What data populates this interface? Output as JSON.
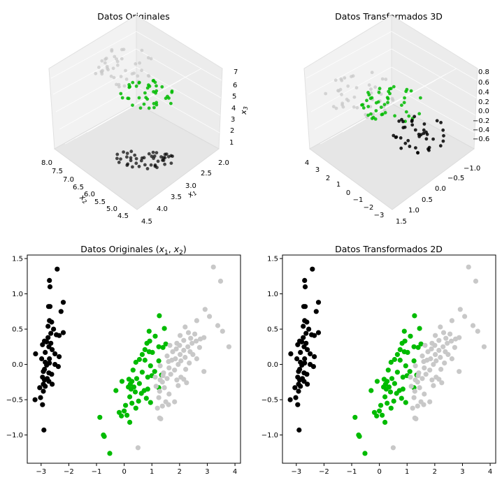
{
  "figure": {
    "colors": {
      "black": "#000000",
      "green": "#00bb00",
      "gray": "#c8c8c8"
    }
  },
  "panels": {
    "p3d_orig": {
      "title": "Datos Originales",
      "z_label": "x3",
      "x2_label": "x2",
      "x1_label": "x1",
      "x2_ticks": [
        "8.0",
        "7.5",
        "7.0",
        "6.5",
        "6.0",
        "5.5",
        "5.0",
        "4.5"
      ],
      "x1_ticks": [
        "2.0",
        "2.5",
        "3.0",
        "3.5",
        "4.0",
        "4.5"
      ],
      "z_ticks": [
        "7",
        "6",
        "5",
        "4",
        "3",
        "2",
        "1"
      ]
    },
    "p3d_trans": {
      "title": "Datos Transformados 3D",
      "a_ticks": [
        "4",
        "3",
        "2",
        "1",
        "0",
        "−1",
        "−2",
        "−3"
      ],
      "b_ticks": [
        "−1.0",
        "−0.5",
        "0.0",
        "0.5",
        "1.0",
        "1.5"
      ],
      "z_ticks": [
        "0.8",
        "0.6",
        "0.4",
        "0.2",
        "0.0",
        "−0.2",
        "−0.4",
        "−0.6"
      ]
    },
    "p2d_orig": {
      "title": "Datos Originales (x1, x2)",
      "title_plain": "Datos Originales ",
      "title_math": "(x1, x2)"
    },
    "p2d_trans": {
      "title": "Datos Transformados 2D"
    }
  },
  "chart_data": [
    {
      "type": "scatter",
      "title": "Datos Originales (x1, x2)",
      "xlim": [
        -3.5,
        4.2
      ],
      "ylim": [
        -1.4,
        1.55
      ],
      "xticks": [
        -3,
        -2,
        -1,
        0,
        1,
        2,
        3,
        4
      ],
      "yticks": [
        -1.0,
        -0.5,
        0.0,
        0.5,
        1.0,
        1.5
      ],
      "xtick_labels": [
        "−3",
        "−2",
        "−1",
        "0",
        "1",
        "2",
        "3",
        "4"
      ],
      "ytick_labels": [
        "−1.0",
        "−0.5",
        "0.0",
        "0.5",
        "1.0",
        "1.5"
      ],
      "series": [
        {
          "color": "#000000",
          "points": [
            [
              -2.42,
              1.35
            ],
            [
              -2.7,
              1.19
            ],
            [
              -2.68,
              1.1
            ],
            [
              -2.2,
              0.88
            ],
            [
              -2.73,
              0.82
            ],
            [
              -2.68,
              0.82
            ],
            [
              -2.28,
              0.75
            ],
            [
              -2.7,
              0.62
            ],
            [
              -2.62,
              0.6
            ],
            [
              -2.75,
              0.54
            ],
            [
              -2.55,
              0.5
            ],
            [
              -2.2,
              0.45
            ],
            [
              -2.65,
              0.44
            ],
            [
              -2.45,
              0.42
            ],
            [
              -2.35,
              0.41
            ],
            [
              -2.75,
              0.38
            ],
            [
              -2.88,
              0.33
            ],
            [
              -2.8,
              0.32
            ],
            [
              -2.65,
              0.3
            ],
            [
              -2.95,
              0.28
            ],
            [
              -2.72,
              0.25
            ],
            [
              -2.6,
              0.21
            ],
            [
              -2.85,
              0.17
            ],
            [
              -3.2,
              0.15
            ],
            [
              -2.5,
              0.15
            ],
            [
              -2.35,
              0.11
            ],
            [
              -2.7,
              0.08
            ],
            [
              -2.98,
              0.08
            ],
            [
              -2.85,
              0.03
            ],
            [
              -2.7,
              0.02
            ],
            [
              -2.8,
              -0.01
            ],
            [
              -2.5,
              0.0
            ],
            [
              -2.38,
              -0.03
            ],
            [
              -2.88,
              -0.07
            ],
            [
              -2.92,
              -0.1
            ],
            [
              -2.72,
              -0.12
            ],
            [
              -2.62,
              -0.14
            ],
            [
              -2.95,
              -0.18
            ],
            [
              -2.78,
              -0.2
            ],
            [
              -2.88,
              -0.22
            ],
            [
              -2.72,
              -0.24
            ],
            [
              -2.92,
              -0.28
            ],
            [
              -2.6,
              -0.28
            ],
            [
              -2.85,
              -0.31
            ],
            [
              -3.05,
              -0.33
            ],
            [
              -2.92,
              -0.38
            ],
            [
              -3.02,
              -0.47
            ],
            [
              -3.22,
              -0.5
            ],
            [
              -2.95,
              -0.57
            ],
            [
              -2.9,
              -0.93
            ]
          ]
        },
        {
          "color": "#00bb00",
          "points": [
            [
              1.27,
              0.69
            ],
            [
              1.45,
              0.51
            ],
            [
              0.9,
              0.47
            ],
            [
              1.12,
              0.4
            ],
            [
              0.92,
              0.33
            ],
            [
              1.5,
              0.29
            ],
            [
              0.82,
              0.3
            ],
            [
              1.25,
              0.25
            ],
            [
              0.75,
              0.21
            ],
            [
              1.4,
              0.24
            ],
            [
              0.9,
              0.18
            ],
            [
              1.02,
              0.17
            ],
            [
              0.65,
              0.14
            ],
            [
              0.55,
              0.07
            ],
            [
              0.75,
              0.06
            ],
            [
              1.25,
              0.05
            ],
            [
              0.42,
              0.03
            ],
            [
              0.95,
              -0.02
            ],
            [
              0.32,
              -0.08
            ],
            [
              1.1,
              -0.1
            ],
            [
              0.65,
              -0.11
            ],
            [
              1.35,
              -0.15
            ],
            [
              1.0,
              -0.16
            ],
            [
              0.85,
              -0.18
            ],
            [
              0.45,
              -0.2
            ],
            [
              0.17,
              -0.21
            ],
            [
              0.28,
              -0.24
            ],
            [
              -0.08,
              -0.24
            ],
            [
              0.55,
              -0.27
            ],
            [
              0.22,
              -0.28
            ],
            [
              0.15,
              -0.32
            ],
            [
              0.35,
              -0.32
            ],
            [
              0.25,
              -0.35
            ],
            [
              0.85,
              -0.35
            ],
            [
              0.72,
              -0.37
            ],
            [
              -0.3,
              -0.37
            ],
            [
              0.4,
              -0.39
            ],
            [
              1.25,
              -0.33
            ],
            [
              0.62,
              -0.41
            ],
            [
              0.2,
              -0.46
            ],
            [
              0.8,
              -0.48
            ],
            [
              0.52,
              -0.52
            ],
            [
              0.95,
              -0.54
            ],
            [
              0.28,
              -0.55
            ],
            [
              0.05,
              -0.58
            ],
            [
              0.42,
              -0.62
            ],
            [
              0.0,
              -0.66
            ],
            [
              -0.18,
              -0.68
            ],
            [
              0.1,
              -0.72
            ],
            [
              -0.1,
              -0.73
            ],
            [
              0.2,
              -0.82
            ],
            [
              -0.88,
              -0.75
            ],
            [
              -0.75,
              -1.0
            ],
            [
              -0.72,
              -1.02
            ],
            [
              -0.52,
              -1.26
            ]
          ]
        },
        {
          "color": "#c8c8c8",
          "points": [
            [
              3.22,
              1.38
            ],
            [
              3.48,
              1.18
            ],
            [
              2.92,
              0.78
            ],
            [
              3.08,
              0.68
            ],
            [
              2.62,
              0.62
            ],
            [
              3.38,
              0.55
            ],
            [
              2.2,
              0.53
            ],
            [
              3.55,
              0.47
            ],
            [
              2.32,
              0.45
            ],
            [
              2.55,
              0.43
            ],
            [
              2.02,
              0.41
            ],
            [
              2.88,
              0.38
            ],
            [
              2.4,
              0.37
            ],
            [
              2.75,
              0.36
            ],
            [
              2.15,
              0.34
            ],
            [
              2.6,
              0.33
            ],
            [
              3.78,
              0.25
            ],
            [
              1.9,
              0.3
            ],
            [
              2.45,
              0.3
            ],
            [
              2.0,
              0.27
            ],
            [
              1.65,
              0.27
            ],
            [
              2.3,
              0.25
            ],
            [
              2.72,
              0.24
            ],
            [
              1.88,
              0.22
            ],
            [
              2.15,
              0.2
            ],
            [
              2.38,
              0.18
            ],
            [
              1.75,
              0.18
            ],
            [
              2.02,
              0.14
            ],
            [
              2.48,
              0.14
            ],
            [
              1.55,
              0.12
            ],
            [
              2.2,
              0.1
            ],
            [
              1.85,
              0.08
            ],
            [
              2.62,
              0.08
            ],
            [
              1.72,
              0.06
            ],
            [
              2.05,
              0.05
            ],
            [
              1.6,
              0.04
            ],
            [
              2.35,
              0.02
            ],
            [
              1.95,
              0.0
            ],
            [
              1.3,
              -0.02
            ],
            [
              1.62,
              -0.05
            ],
            [
              2.22,
              -0.07
            ],
            [
              1.82,
              -0.08
            ],
            [
              2.88,
              -0.1
            ],
            [
              1.42,
              -0.12
            ],
            [
              1.68,
              -0.14
            ],
            [
              1.4,
              -0.16
            ],
            [
              1.12,
              -0.18
            ],
            [
              2.05,
              -0.18
            ],
            [
              1.55,
              -0.2
            ],
            [
              2.15,
              -0.21
            ],
            [
              1.3,
              -0.22
            ],
            [
              1.9,
              -0.22
            ],
            [
              1.38,
              -0.25
            ],
            [
              2.25,
              -0.26
            ],
            [
              1.95,
              -0.3
            ],
            [
              1.15,
              -0.31
            ],
            [
              1.45,
              -0.33
            ],
            [
              1.28,
              -0.38
            ],
            [
              1.62,
              -0.42
            ],
            [
              1.25,
              -0.47
            ],
            [
              1.5,
              -0.53
            ],
            [
              1.82,
              -0.53
            ],
            [
              1.6,
              -0.57
            ],
            [
              1.38,
              -0.59
            ],
            [
              1.2,
              -0.62
            ],
            [
              1.28,
              -0.76
            ],
            [
              1.32,
              -0.77
            ],
            [
              0.5,
              -1.18
            ]
          ]
        }
      ]
    },
    {
      "type": "scatter",
      "title": "Datos Transformados 2D",
      "xlim": [
        -3.5,
        4.2
      ],
      "ylim": [
        -1.4,
        1.55
      ],
      "xticks": [
        -3,
        -2,
        -1,
        0,
        1,
        2,
        3,
        4
      ],
      "yticks": [
        -1.0,
        -0.5,
        0.0,
        0.5,
        1.0,
        1.5
      ],
      "xtick_labels": [
        "−3",
        "−2",
        "−1",
        "0",
        "1",
        "2",
        "3",
        "4"
      ],
      "ytick_labels": [
        "−1.0",
        "−0.5",
        "0.0",
        "0.5",
        "1.0",
        "1.5"
      ],
      "same_as_previous": true
    }
  ]
}
